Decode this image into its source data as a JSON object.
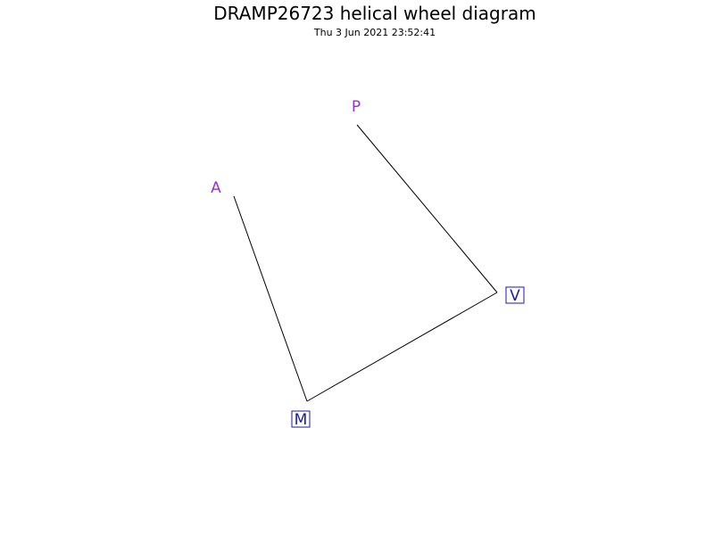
{
  "title": "DRAMP26723 helical wheel diagram",
  "timestamp": "Thu  3 Jun 2021 23:52:41",
  "residues": [
    {
      "letter": "P",
      "color": "#9932cc",
      "boxed": false
    },
    {
      "letter": "V",
      "color": "#1a1aa6",
      "boxed": true
    },
    {
      "letter": "M",
      "color": "#1a1aa6",
      "boxed": true
    },
    {
      "letter": "A",
      "color": "#9932cc",
      "boxed": false
    }
  ]
}
